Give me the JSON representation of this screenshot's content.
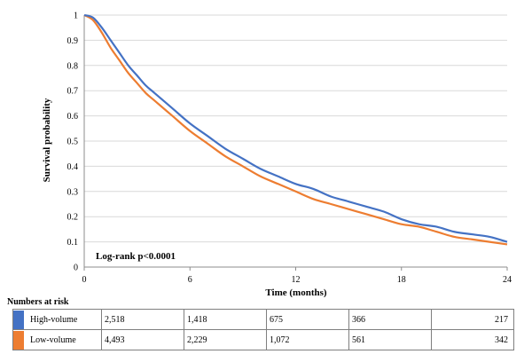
{
  "chart_data": {
    "type": "line",
    "ylabel": "Survival probability",
    "xlabel": "Time (months)",
    "xlim": [
      0,
      24
    ],
    "ylim": [
      0,
      1
    ],
    "x_ticks": [
      "0",
      "6",
      "12",
      "18",
      "24"
    ],
    "y_ticks": [
      "0",
      "0.1",
      "0.2",
      "0.3",
      "0.4",
      "0.5",
      "0.6",
      "0.7",
      "0.8",
      "0.9",
      "1"
    ],
    "grid": "horizontal",
    "annotation": "Log-rank p<0.0001",
    "series": [
      {
        "name": "High-volume",
        "color": "#4472c4",
        "x": [
          0,
          0.5,
          1,
          1.5,
          2,
          2.5,
          3,
          3.5,
          4,
          5,
          6,
          7,
          8,
          9,
          10,
          11,
          12,
          13,
          14,
          15,
          16,
          17,
          18,
          19,
          20,
          21,
          22,
          23,
          24
        ],
        "y": [
          1.0,
          0.99,
          0.95,
          0.9,
          0.85,
          0.8,
          0.76,
          0.72,
          0.69,
          0.63,
          0.57,
          0.52,
          0.47,
          0.43,
          0.39,
          0.36,
          0.33,
          0.31,
          0.28,
          0.26,
          0.24,
          0.22,
          0.19,
          0.17,
          0.16,
          0.14,
          0.13,
          0.12,
          0.1
        ]
      },
      {
        "name": "Low-volume",
        "color": "#ed7d31",
        "x": [
          0,
          0.5,
          1,
          1.5,
          2,
          2.5,
          3,
          3.5,
          4,
          5,
          6,
          7,
          8,
          9,
          10,
          11,
          12,
          13,
          14,
          15,
          16,
          17,
          18,
          19,
          20,
          21,
          22,
          23,
          24
        ],
        "y": [
          1.0,
          0.98,
          0.93,
          0.87,
          0.82,
          0.77,
          0.73,
          0.69,
          0.66,
          0.6,
          0.54,
          0.49,
          0.44,
          0.4,
          0.36,
          0.33,
          0.3,
          0.27,
          0.25,
          0.23,
          0.21,
          0.19,
          0.17,
          0.16,
          0.14,
          0.12,
          0.11,
          0.1,
          0.09
        ]
      }
    ]
  },
  "risk_table": {
    "title": "Numbers at risk",
    "rows": [
      {
        "label": "High-volume",
        "color": "#4472c4",
        "values": [
          "2,518",
          "1,418",
          "675",
          "366",
          "217"
        ]
      },
      {
        "label": "Low-volume",
        "color": "#ed7d31",
        "values": [
          "4,493",
          "2,229",
          "1,072",
          "561",
          "342"
        ]
      }
    ]
  }
}
